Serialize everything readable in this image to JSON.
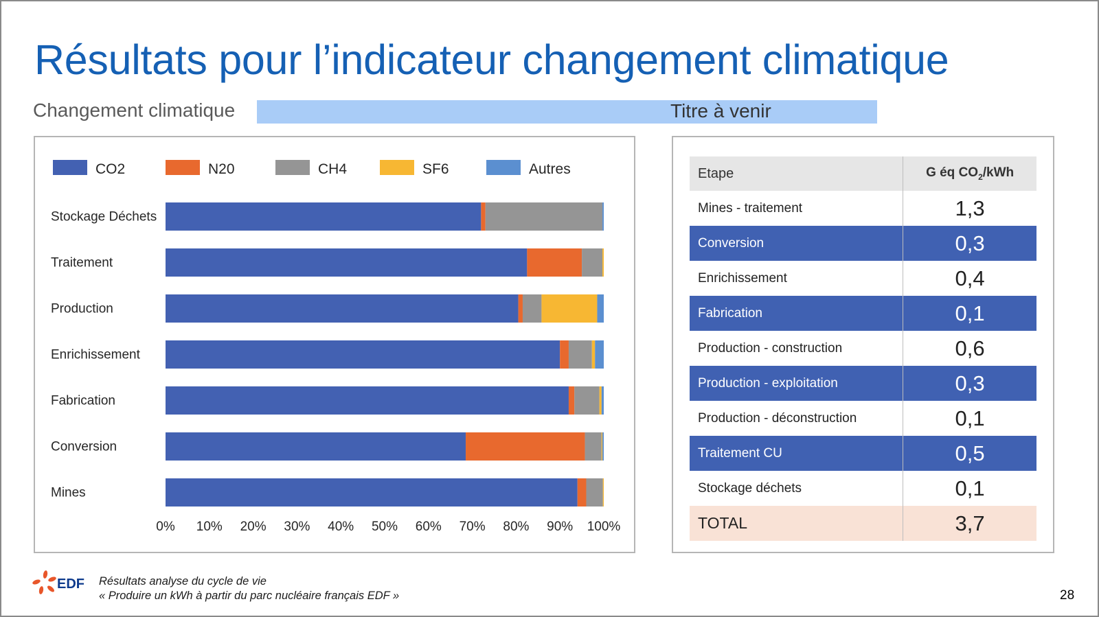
{
  "title": "Résultats pour l’indicateur changement climatique",
  "subtitle": "Changement climatique",
  "placeholder_title": "Titre à venir",
  "chart_data": {
    "type": "bar",
    "orientation": "horizontal",
    "stacked": true,
    "normalized": true,
    "categories": [
      "Stockage Déchets",
      "Traitement",
      "Production",
      "Enrichissement",
      "Fabrication",
      "Conversion",
      "Mines"
    ],
    "series": [
      {
        "name": "CO2",
        "color": "#4361b2",
        "values": [
          72,
          82.5,
          80.5,
          90,
          92,
          68.5,
          94
        ]
      },
      {
        "name": "N20",
        "color": "#e8692e",
        "values": [
          1,
          12.5,
          1,
          2,
          1.3,
          27.2,
          2
        ]
      },
      {
        "name": "CH4",
        "color": "#959595",
        "values": [
          26.7,
          4.7,
          4.3,
          5.3,
          5.7,
          3.8,
          3.8
        ]
      },
      {
        "name": "SF6",
        "color": "#f7b733",
        "values": [
          0,
          0.3,
          12.7,
          0.7,
          0.5,
          0.2,
          0.2
        ]
      },
      {
        "name": "Autres",
        "color": "#5b8fd0",
        "values": [
          0.3,
          0,
          1.5,
          2,
          0.5,
          0.3,
          0
        ]
      }
    ],
    "x_ticks": [
      "0%",
      "10%",
      "20%",
      "30%",
      "40%",
      "50%",
      "60%",
      "70%",
      "80%",
      "90%",
      "100%"
    ],
    "xlim": [
      0,
      100
    ],
    "legend_position": "top",
    "grid": false
  },
  "table": {
    "header_step": "Etape",
    "header_unit_main": "G éq CO",
    "header_unit_sub": "2",
    "header_unit_tail": "/kWh",
    "rows": [
      {
        "step": "Mines - traitement",
        "value": "1,3"
      },
      {
        "step": "Conversion",
        "value": "0,3"
      },
      {
        "step": "Enrichissement",
        "value": "0,4"
      },
      {
        "step": "Fabrication",
        "value": "0,1"
      },
      {
        "step": "Production - construction",
        "value": "0,6"
      },
      {
        "step": "Production - exploitation",
        "value": "0,3"
      },
      {
        "step": "Production - déconstruction",
        "value": "0,1"
      },
      {
        "step": "Traitement CU",
        "value": "0,5"
      },
      {
        "step": "Stockage déchets",
        "value": "0,1"
      },
      {
        "step": "TOTAL",
        "value": "3,7"
      }
    ],
    "row_colors": {
      "highlight": "#4061b2",
      "total": "#f9e2d6",
      "header": "#e6e6e6"
    }
  },
  "footer": {
    "logo_text": "EDF",
    "line1": "Résultats analyse du cycle de vie",
    "line2": "« Produire un kWh à partir du parc nucléaire français EDF »"
  },
  "page_number": "28",
  "colors": {
    "title": "#1560b4",
    "placeholder_bar": "#a9ccf7",
    "logo_orange": "#e8562a",
    "logo_blue": "#0d3a8c"
  }
}
